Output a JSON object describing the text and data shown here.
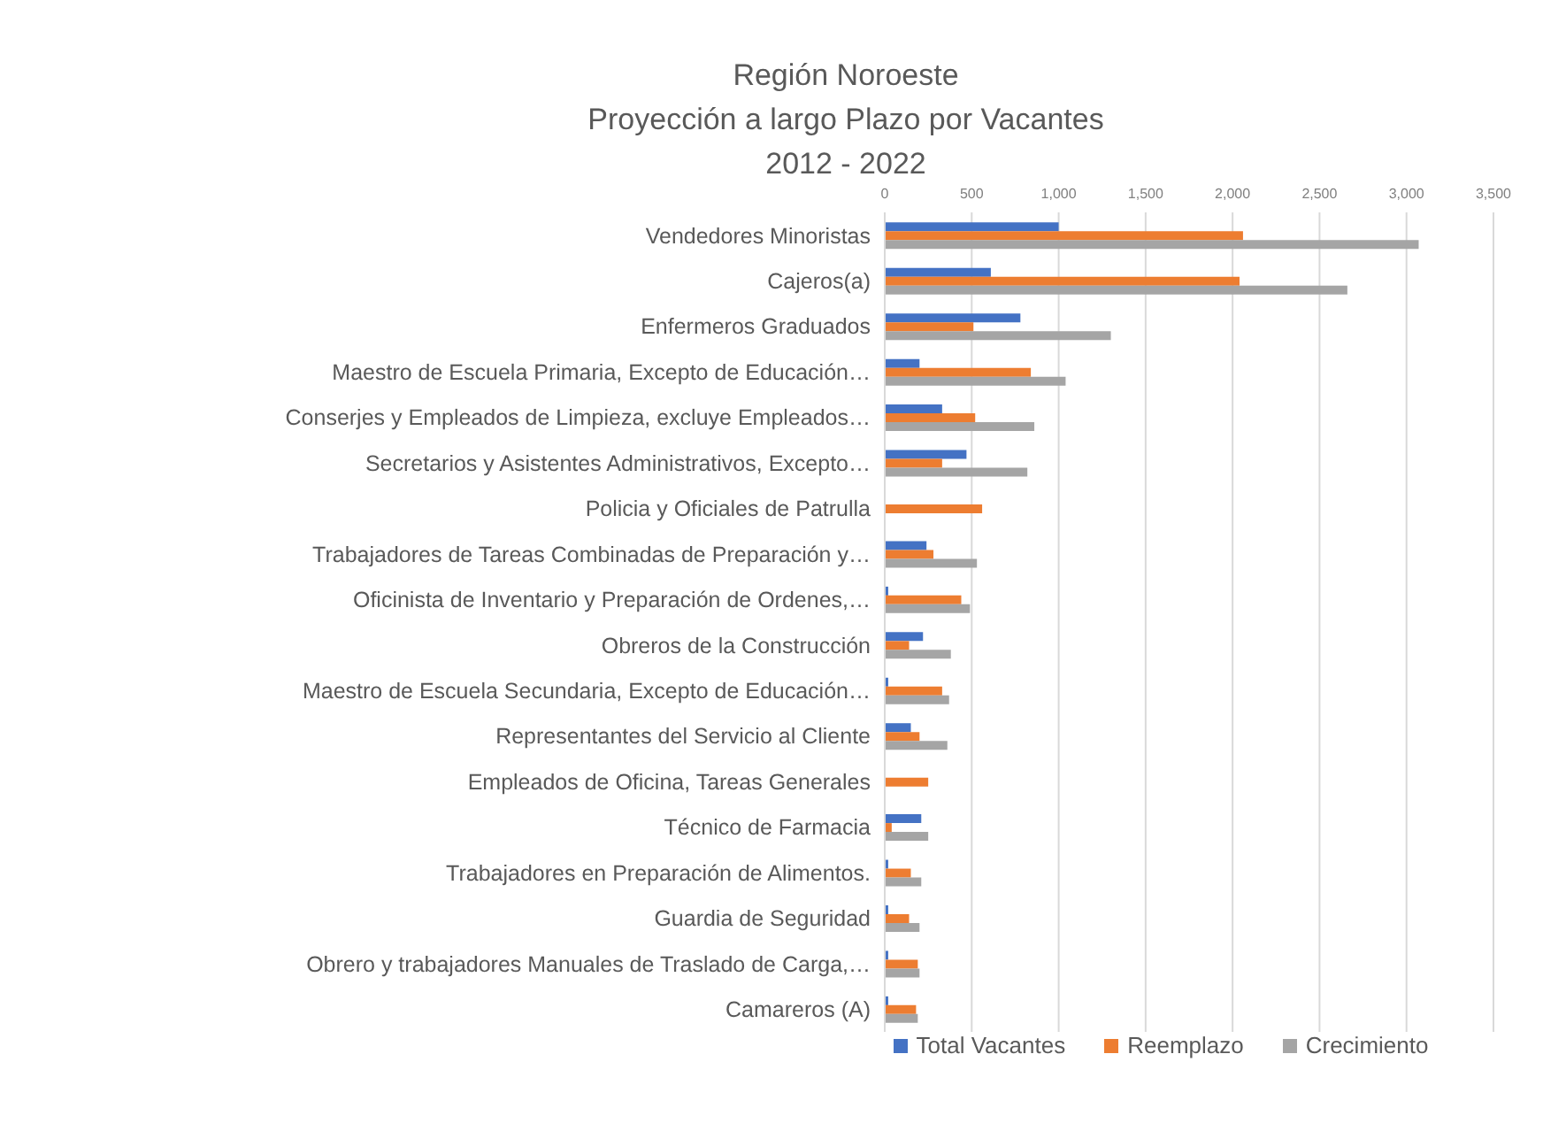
{
  "chart_data": {
    "type": "bar",
    "orientation": "horizontal",
    "title": "Región Noroeste\nProyección a largo Plazo por Vacantes\n2012 - 2022",
    "categories": [
      "Vendedores Minoristas",
      "Cajeros(a)",
      "Enfermeros Graduados",
      "Maestro de Escuela Primaria, Excepto de Educación…",
      "Conserjes y Empleados de Limpieza, excluye Empleados…",
      "Secretarios y Asistentes Administrativos, Excepto…",
      "Policia y Oficiales de Patrulla",
      "Trabajadores de Tareas Combinadas de Preparación y…",
      "Oficinista de Inventario y Preparación de Ordenes,…",
      "Obreros de la Construcción",
      "Maestro de Escuela Secundaria, Excepto de Educación…",
      "Representantes del Servicio al Cliente",
      "Empleados de Oficina, Tareas Generales",
      "Técnico de Farmacia",
      "Trabajadores en Preparación de Alimentos.",
      "Guardia de Seguridad",
      "Obrero y trabajadores Manuales de Traslado de Carga,…",
      "Camareros (A)"
    ],
    "series": [
      {
        "name": "Total Vacantes",
        "color": "#4472c4",
        "values": [
          1000,
          610,
          780,
          200,
          330,
          470,
          null,
          240,
          20,
          220,
          20,
          150,
          null,
          210,
          20,
          20,
          20,
          20
        ]
      },
      {
        "name": "Reemplazo",
        "color": "#ed7d31",
        "values": [
          2060,
          2040,
          510,
          840,
          520,
          330,
          560,
          280,
          440,
          140,
          330,
          200,
          250,
          40,
          150,
          140,
          190,
          180
        ]
      },
      {
        "name": "Crecimiento",
        "color": "#a5a5a5",
        "values": [
          3070,
          2660,
          1300,
          1040,
          860,
          820,
          null,
          530,
          490,
          380,
          370,
          360,
          null,
          250,
          210,
          200,
          200,
          190
        ]
      }
    ],
    "xlim": [
      0,
      3500
    ],
    "xticks": [
      {
        "value": 0,
        "label": "0"
      },
      {
        "value": 500,
        "label": "500"
      },
      {
        "value": 1000,
        "label": "1,000"
      },
      {
        "value": 1500,
        "label": "1,500"
      },
      {
        "value": 2000,
        "label": "2,000"
      },
      {
        "value": 2500,
        "label": "2,500"
      },
      {
        "value": 3000,
        "label": "3,000"
      },
      {
        "value": 3500,
        "label": "3,500"
      }
    ],
    "grid": "x",
    "legend": "bottom"
  }
}
